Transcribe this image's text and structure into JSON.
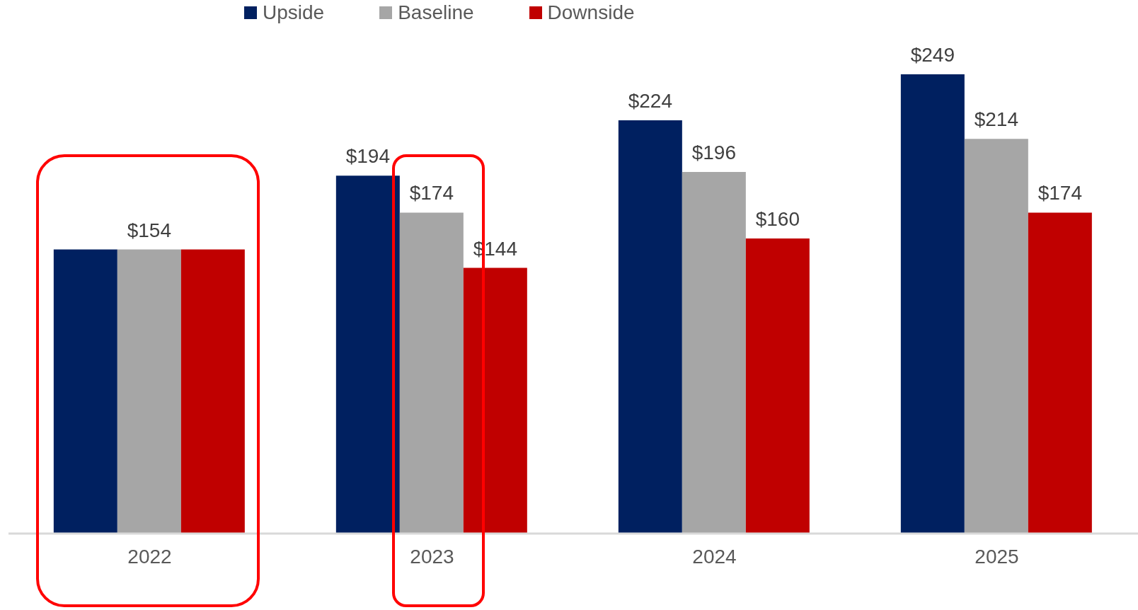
{
  "chart_data": {
    "type": "bar",
    "categories": [
      "2022",
      "2023",
      "2024",
      "2025"
    ],
    "series": [
      {
        "name": "Upside",
        "color": "#002060",
        "values": [
          154,
          194,
          224,
          249
        ],
        "value_labels": [
          null,
          "$194",
          "$224",
          "$249"
        ]
      },
      {
        "name": "Baseline",
        "color": "#a6a6a6",
        "values": [
          154,
          174,
          196,
          214
        ],
        "value_labels": [
          "$154",
          "$174",
          "$196",
          "$214"
        ]
      },
      {
        "name": "Downside",
        "color": "#c00000",
        "values": [
          154,
          144,
          160,
          174
        ],
        "value_labels": [
          null,
          "$144",
          "$160",
          "$174"
        ]
      }
    ],
    "legend": "top",
    "grid": false
  }
}
